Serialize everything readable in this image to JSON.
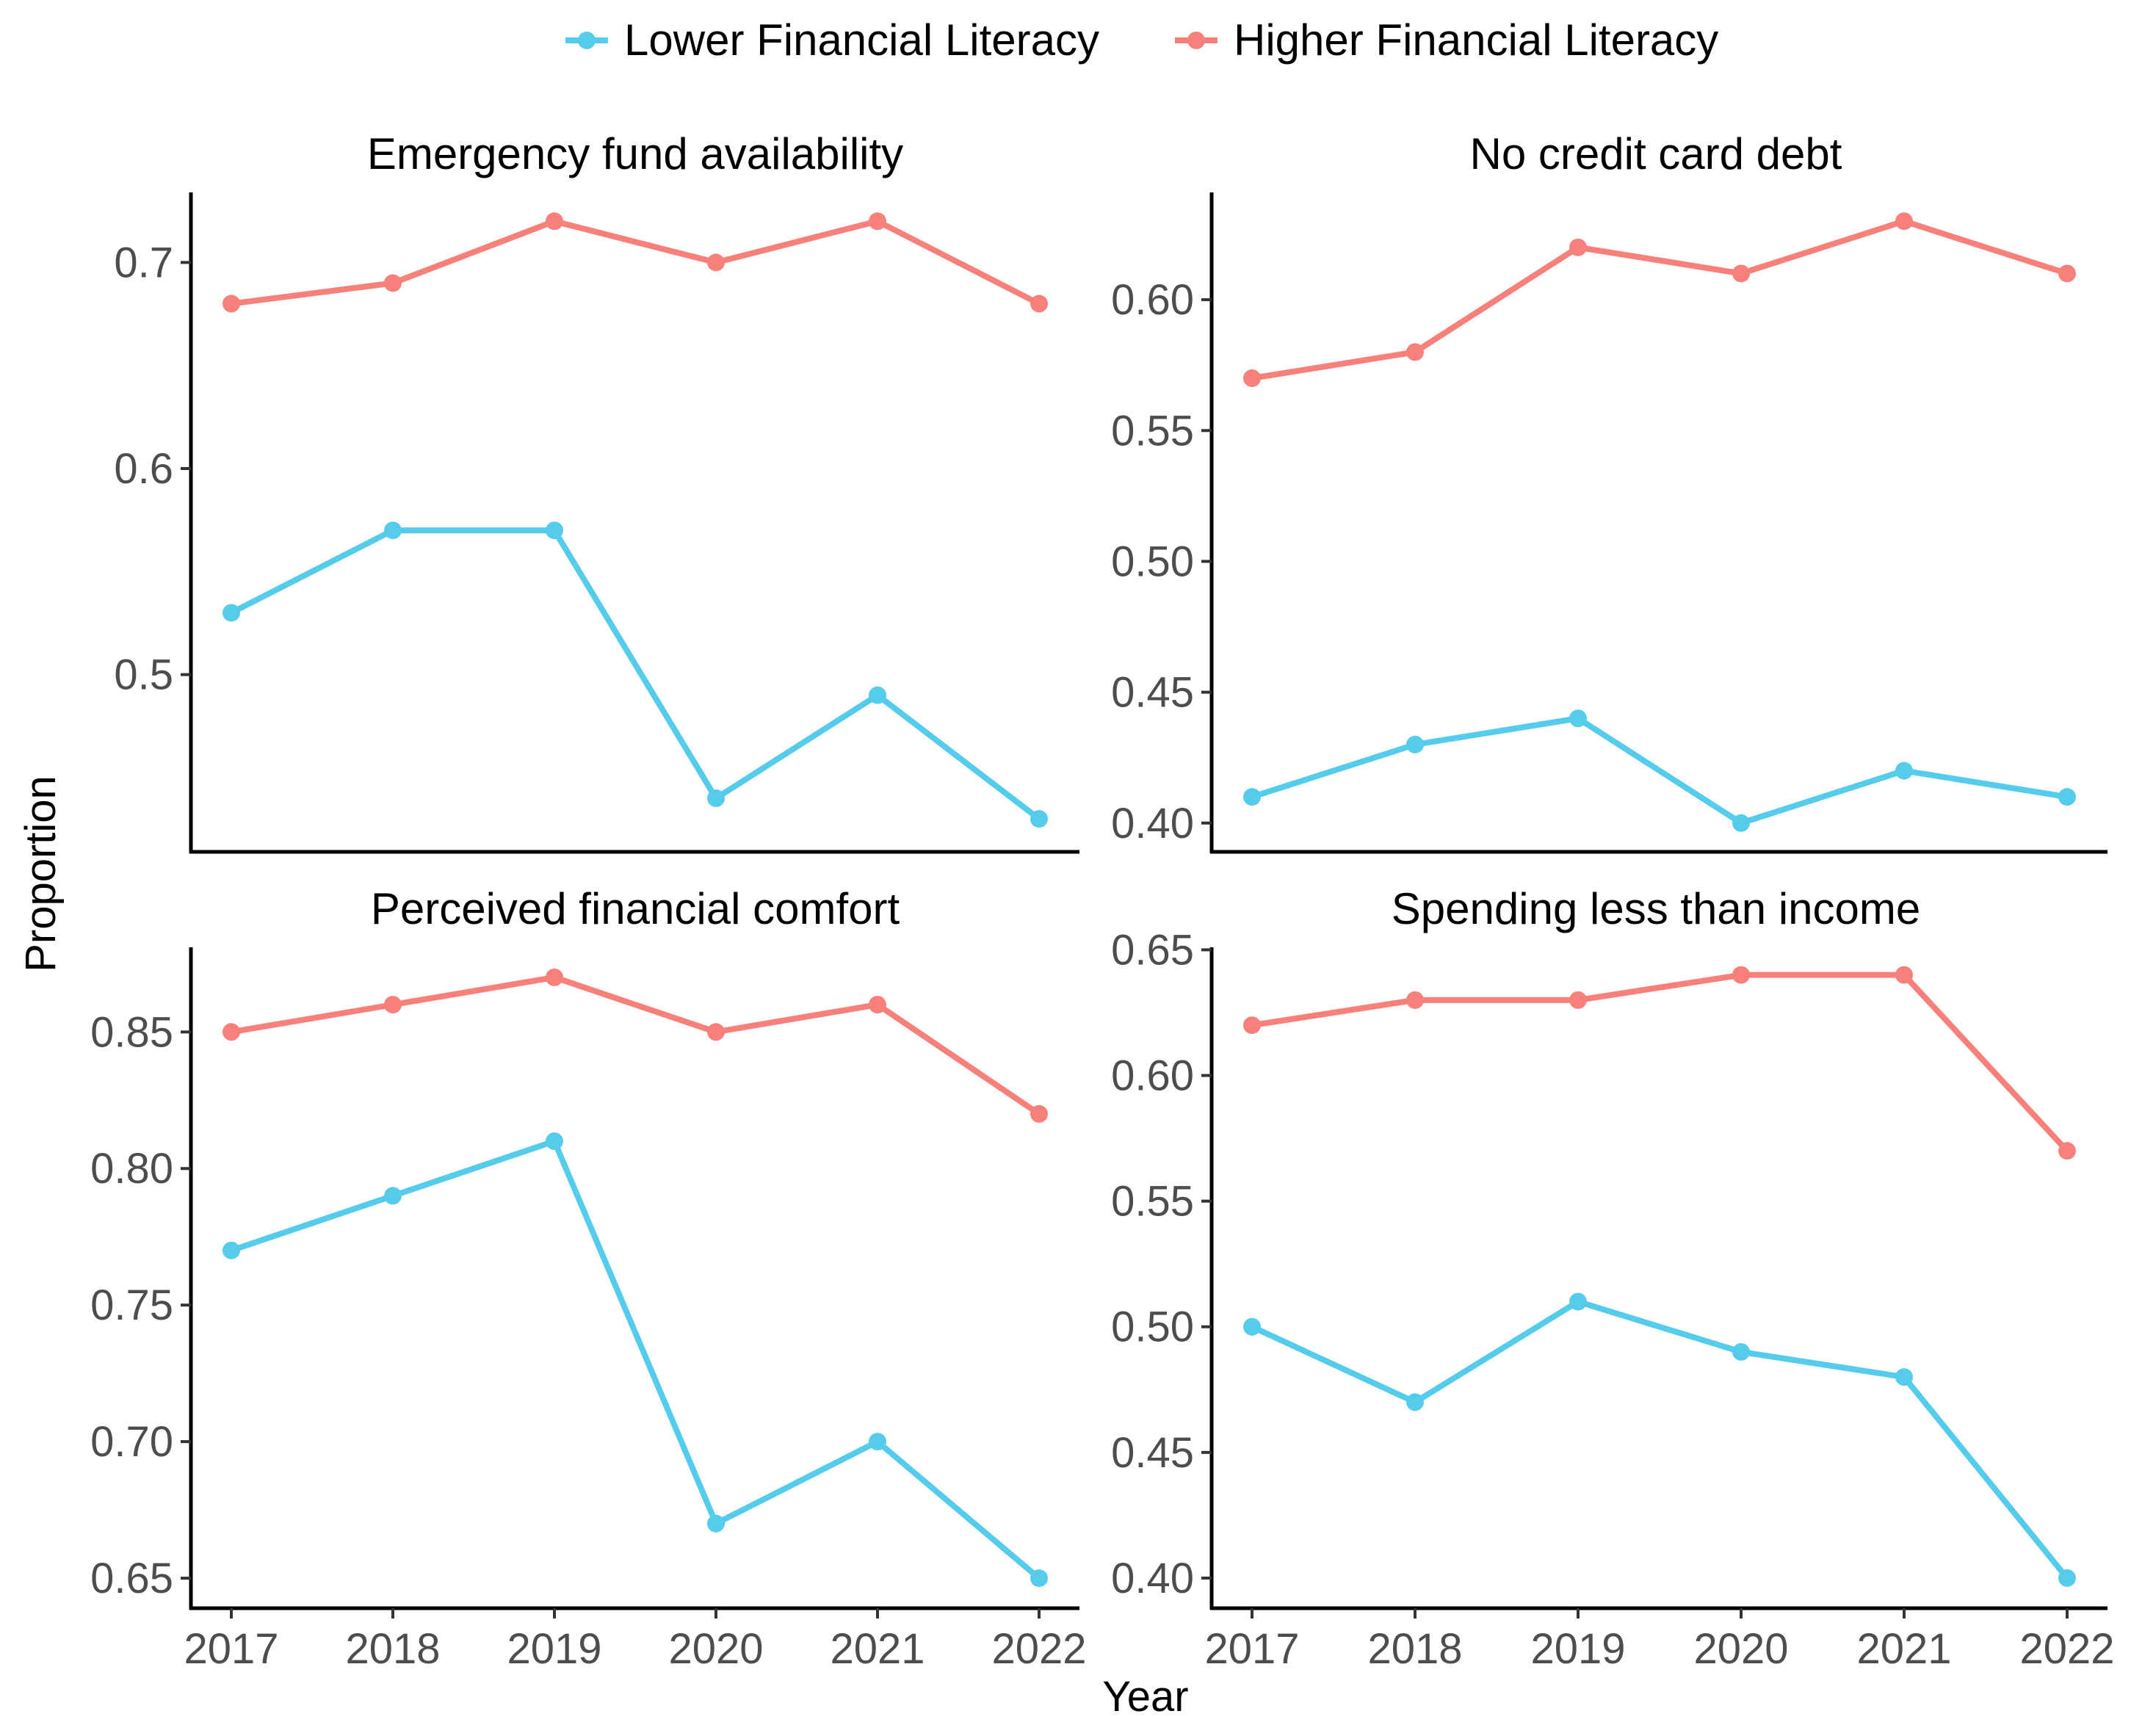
{
  "chart_data": {
    "type": "line",
    "xlabel": "Year",
    "ylabel": "Proportion",
    "legend_position": "top",
    "legend": [
      {
        "name": "Lower Financial Literacy",
        "color": "#55CCEB"
      },
      {
        "name": "Higher Financial Literacy",
        "color": "#F8807A"
      }
    ],
    "x": [
      2017,
      2018,
      2019,
      2020,
      2021,
      2022
    ],
    "x_ticks": [
      "2017",
      "2018",
      "2019",
      "2020",
      "2021",
      "2022"
    ],
    "panels": [
      {
        "title": "Emergency fund availability",
        "ylim": [
          0.414,
          0.734
        ],
        "y_ticks": [
          {
            "value": 0.5,
            "label": "0.5"
          },
          {
            "value": 0.6,
            "label": "0.6"
          },
          {
            "value": 0.7,
            "label": "0.7"
          }
        ],
        "series": [
          {
            "name": "Lower Financial Literacy",
            "values": [
              0.53,
              0.57,
              0.57,
              0.44,
              0.49,
              0.43
            ]
          },
          {
            "name": "Higher Financial Literacy",
            "values": [
              0.68,
              0.69,
              0.72,
              0.7,
              0.72,
              0.68
            ]
          }
        ]
      },
      {
        "title": "No credit card debt",
        "ylim": [
          0.389,
          0.641
        ],
        "y_ticks": [
          {
            "value": 0.4,
            "label": "0.40"
          },
          {
            "value": 0.45,
            "label": "0.45"
          },
          {
            "value": 0.5,
            "label": "0.50"
          },
          {
            "value": 0.55,
            "label": "0.55"
          },
          {
            "value": 0.6,
            "label": "0.60"
          }
        ],
        "series": [
          {
            "name": "Lower Financial Literacy",
            "values": [
              0.41,
              0.43,
              0.44,
              0.4,
              0.42,
              0.41
            ]
          },
          {
            "name": "Higher Financial Literacy",
            "values": [
              0.57,
              0.58,
              0.62,
              0.61,
              0.63,
              0.61
            ]
          }
        ]
      },
      {
        "title": "Perceived financial comfort",
        "ylim": [
          0.639,
          0.881
        ],
        "y_ticks": [
          {
            "value": 0.65,
            "label": "0.65"
          },
          {
            "value": 0.7,
            "label": "0.70"
          },
          {
            "value": 0.75,
            "label": "0.75"
          },
          {
            "value": 0.8,
            "label": "0.80"
          },
          {
            "value": 0.85,
            "label": "0.85"
          }
        ],
        "series": [
          {
            "name": "Lower Financial Literacy",
            "values": [
              0.77,
              0.79,
              0.81,
              0.67,
              0.7,
              0.65
            ]
          },
          {
            "name": "Higher Financial Literacy",
            "values": [
              0.85,
              0.86,
              0.87,
              0.85,
              0.86,
              0.82
            ]
          }
        ]
      },
      {
        "title": "Spending less than income",
        "ylim": [
          0.388,
          0.651
        ],
        "y_ticks": [
          {
            "value": 0.4,
            "label": "0.40"
          },
          {
            "value": 0.45,
            "label": "0.45"
          },
          {
            "value": 0.5,
            "label": "0.50"
          },
          {
            "value": 0.55,
            "label": "0.55"
          },
          {
            "value": 0.6,
            "label": "0.60"
          },
          {
            "value": 0.65,
            "label": "0.65"
          }
        ],
        "series": [
          {
            "name": "Lower Financial Literacy",
            "values": [
              0.5,
              0.47,
              0.51,
              0.49,
              0.48,
              0.4
            ]
          },
          {
            "name": "Higher Financial Literacy",
            "values": [
              0.62,
              0.63,
              0.63,
              0.64,
              0.64,
              0.57
            ]
          }
        ]
      }
    ]
  }
}
